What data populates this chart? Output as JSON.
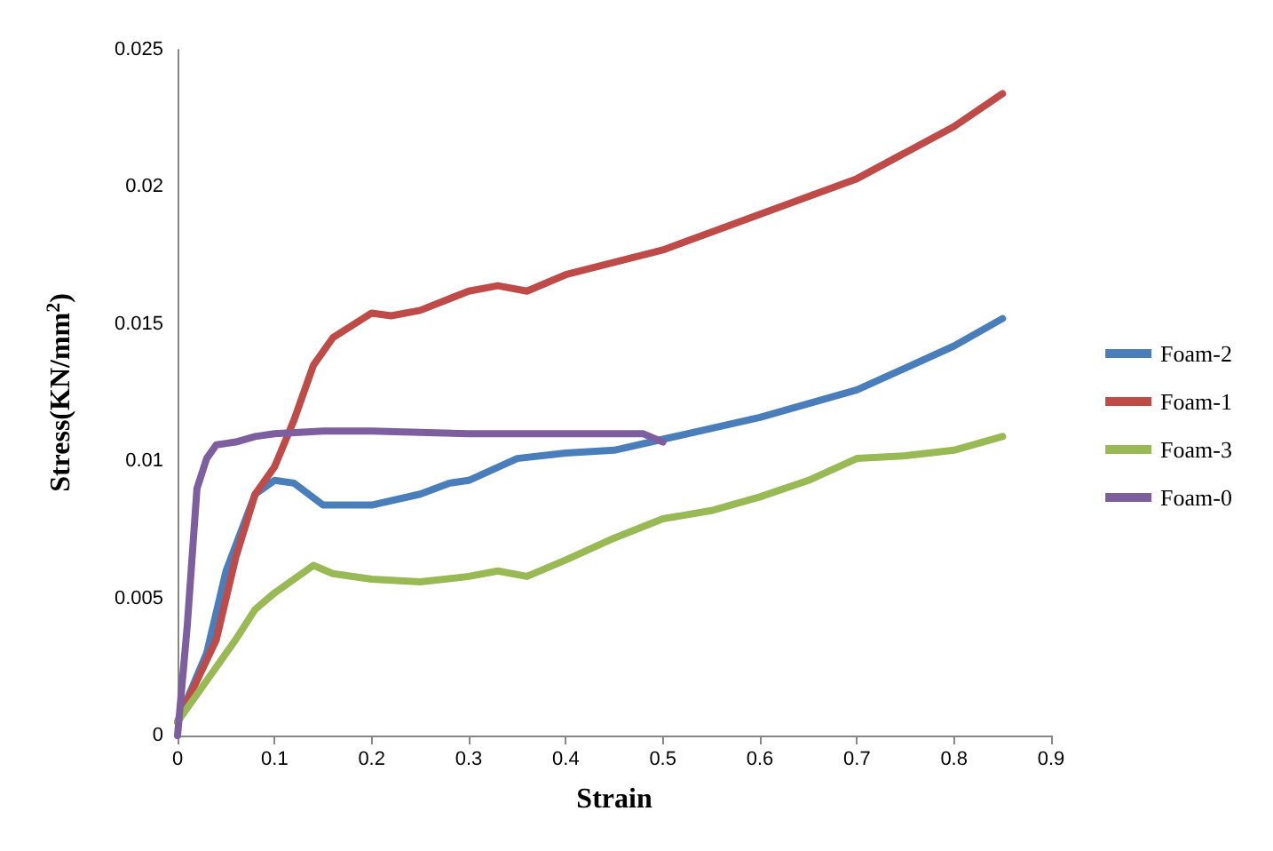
{
  "chart_data": {
    "type": "line",
    "xlabel": "Strain",
    "ylabel": "Stress(KN/mm$^{2}$)",
    "xlim": [
      0,
      0.9
    ],
    "xticks": [
      0,
      0.1,
      0.2,
      0.3,
      0.4,
      0.5,
      0.6,
      0.7,
      0.8,
      0.9
    ],
    "ylim": [
      0,
      0.025
    ],
    "yticks": [
      0,
      0.005,
      0.01,
      0.015,
      0.02,
      0.025
    ],
    "grid": false,
    "legend": "right",
    "marker": "none",
    "line_style": "solid",
    "series": [
      {
        "name": "Foam-2",
        "color": "#4a7ebb",
        "x": [
          0,
          0.03,
          0.05,
          0.08,
          0.1,
          0.12,
          0.15,
          0.2,
          0.25,
          0.28,
          0.3,
          0.35,
          0.4,
          0.45,
          0.5,
          0.6,
          0.7,
          0.8,
          0.85
        ],
        "values": [
          0.0005,
          0.003,
          0.006,
          0.0088,
          0.0093,
          0.0092,
          0.0084,
          0.0084,
          0.0088,
          0.0092,
          0.0093,
          0.0101,
          0.0103,
          0.0104,
          0.0108,
          0.0116,
          0.0126,
          0.0142,
          0.0152
        ]
      },
      {
        "name": "Foam-1",
        "color": "#be4b48",
        "x": [
          0,
          0.02,
          0.04,
          0.06,
          0.08,
          0.1,
          0.12,
          0.14,
          0.16,
          0.2,
          0.22,
          0.25,
          0.3,
          0.33,
          0.36,
          0.4,
          0.5,
          0.6,
          0.7,
          0.8,
          0.85
        ],
        "values": [
          0.0005,
          0.002,
          0.0035,
          0.0065,
          0.0088,
          0.0098,
          0.0115,
          0.0135,
          0.0145,
          0.0154,
          0.0153,
          0.0155,
          0.0162,
          0.0164,
          0.0162,
          0.0168,
          0.0177,
          0.019,
          0.0203,
          0.0222,
          0.0234
        ]
      },
      {
        "name": "Foam-3",
        "color": "#98b954",
        "x": [
          0,
          0.03,
          0.06,
          0.08,
          0.1,
          0.14,
          0.16,
          0.2,
          0.25,
          0.3,
          0.33,
          0.36,
          0.4,
          0.45,
          0.5,
          0.55,
          0.6,
          0.65,
          0.7,
          0.75,
          0.8,
          0.85
        ],
        "values": [
          0.0005,
          0.002,
          0.0035,
          0.0046,
          0.0052,
          0.0062,
          0.0059,
          0.0057,
          0.0056,
          0.0058,
          0.006,
          0.0058,
          0.0064,
          0.0072,
          0.0079,
          0.0082,
          0.0087,
          0.0093,
          0.0101,
          0.0102,
          0.0104,
          0.0109
        ]
      },
      {
        "name": "Foam-0",
        "color": "#7d5fa0",
        "x": [
          0,
          0.01,
          0.02,
          0.03,
          0.04,
          0.06,
          0.08,
          0.1,
          0.15,
          0.2,
          0.3,
          0.4,
          0.48,
          0.5
        ],
        "values": [
          0,
          0.004,
          0.009,
          0.0101,
          0.0106,
          0.0107,
          0.0109,
          0.011,
          0.0111,
          0.0111,
          0.011,
          0.011,
          0.011,
          0.0107
        ]
      }
    ]
  }
}
